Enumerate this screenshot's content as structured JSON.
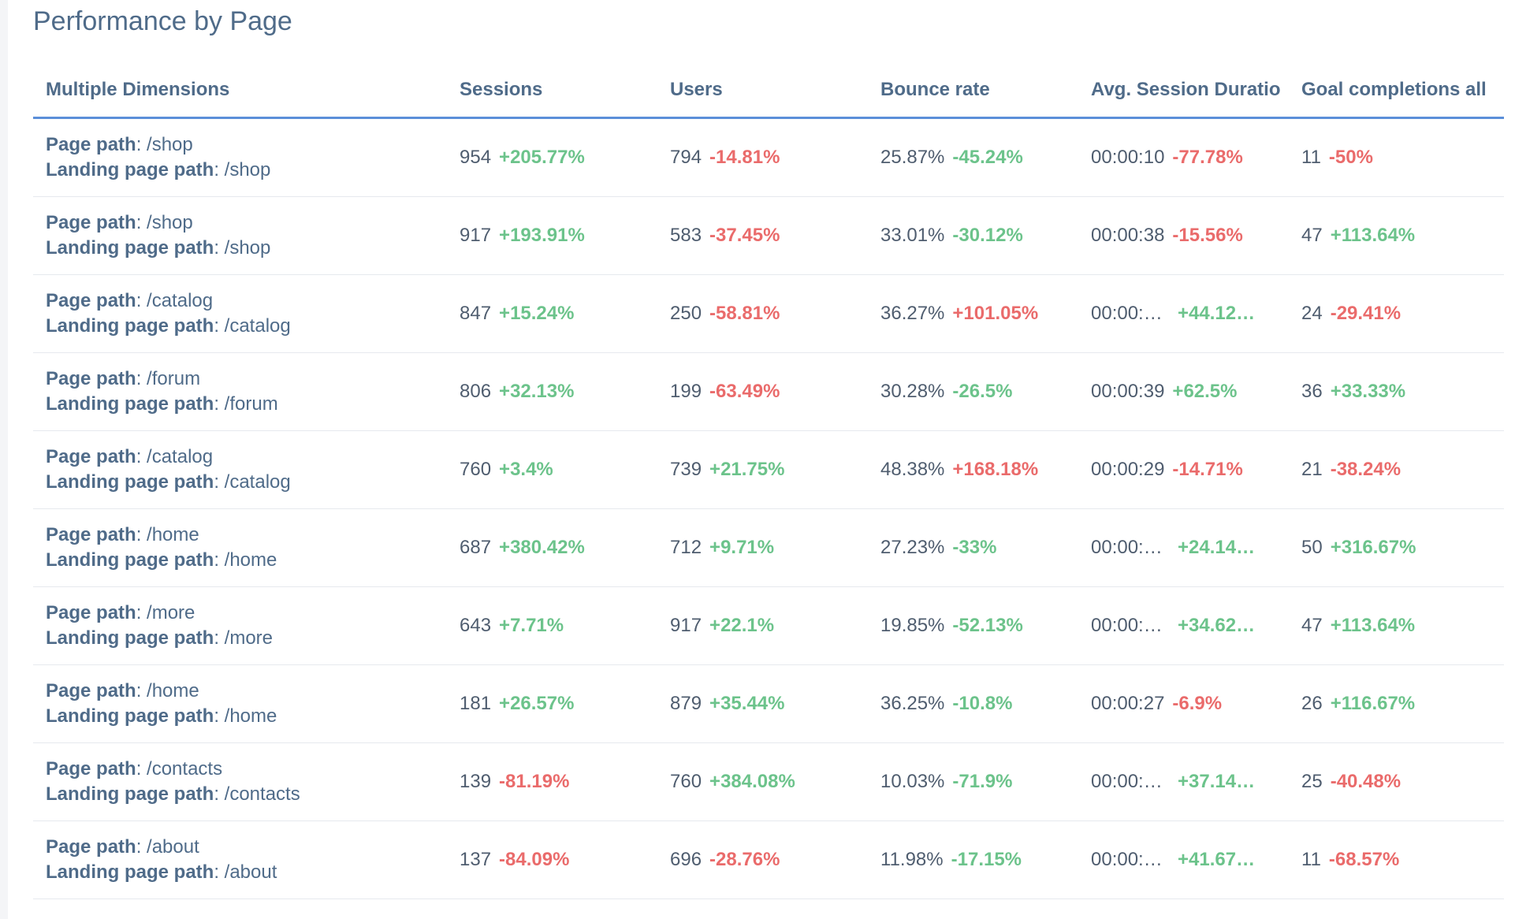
{
  "title": "Performance by Page",
  "colors": {
    "positive": "#6cc38b",
    "negative": "#ea6b6b",
    "header_underline": "#5b8fd9",
    "text": "#4f6b89"
  },
  "columns": [
    "Multiple Dimensions",
    "Sessions",
    "Users",
    "Bounce rate",
    "Avg. Session Duratio",
    "Goal completions all"
  ],
  "dimension_labels": {
    "page_path": "Page path",
    "landing_page_path": "Landing page path"
  },
  "rows": [
    {
      "page_path": ": /shop",
      "landing_page_path": ": /shop",
      "sessions": "954",
      "sessions_delta": "+205.77%",
      "users": "794",
      "users_delta": "-14.81%",
      "bounce": "25.87%",
      "bounce_delta": "-45.24%",
      "duration": "00:00:10",
      "duration_delta": "-77.78%",
      "goals": "11",
      "goals_delta": "-50%"
    },
    {
      "page_path": ": /shop",
      "landing_page_path": ": /shop",
      "sessions": "917",
      "sessions_delta": "+193.91%",
      "users": "583",
      "users_delta": "-37.45%",
      "bounce": "33.01%",
      "bounce_delta": "-30.12%",
      "duration": "00:00:38",
      "duration_delta": "-15.56%",
      "goals": "47",
      "goals_delta": "+113.64%"
    },
    {
      "page_path": ": /catalog",
      "landing_page_path": ": /catalog",
      "sessions": "847",
      "sessions_delta": "+15.24%",
      "users": "250",
      "users_delta": "-58.81%",
      "bounce": "36.27%",
      "bounce_delta": "+101.05%",
      "duration": "00:00:…",
      "duration_delta": "+44.12…",
      "goals": "24",
      "goals_delta": "-29.41%"
    },
    {
      "page_path": ": /forum",
      "landing_page_path": ": /forum",
      "sessions": "806",
      "sessions_delta": "+32.13%",
      "users": "199",
      "users_delta": "-63.49%",
      "bounce": "30.28%",
      "bounce_delta": "-26.5%",
      "duration": "00:00:39",
      "duration_delta": "+62.5%",
      "goals": "36",
      "goals_delta": "+33.33%"
    },
    {
      "page_path": ": /catalog",
      "landing_page_path": ": /catalog",
      "sessions": "760",
      "sessions_delta": "+3.4%",
      "users": "739",
      "users_delta": "+21.75%",
      "bounce": "48.38%",
      "bounce_delta": "+168.18%",
      "duration": "00:00:29",
      "duration_delta": "-14.71%",
      "goals": "21",
      "goals_delta": "-38.24%"
    },
    {
      "page_path": ": /home",
      "landing_page_path": ": /home",
      "sessions": "687",
      "sessions_delta": "+380.42%",
      "users": "712",
      "users_delta": "+9.71%",
      "bounce": "27.23%",
      "bounce_delta": "-33%",
      "duration": "00:00:…",
      "duration_delta": "+24.14…",
      "goals": "50",
      "goals_delta": "+316.67%"
    },
    {
      "page_path": ": /more",
      "landing_page_path": ": /more",
      "sessions": "643",
      "sessions_delta": "+7.71%",
      "users": "917",
      "users_delta": "+22.1%",
      "bounce": "19.85%",
      "bounce_delta": "-52.13%",
      "duration": "00:00:…",
      "duration_delta": "+34.62…",
      "goals": "47",
      "goals_delta": "+113.64%"
    },
    {
      "page_path": ": /home",
      "landing_page_path": ": /home",
      "sessions": "181",
      "sessions_delta": "+26.57%",
      "users": "879",
      "users_delta": "+35.44%",
      "bounce": "36.25%",
      "bounce_delta": "-10.8%",
      "duration": "00:00:27",
      "duration_delta": "-6.9%",
      "goals": "26",
      "goals_delta": "+116.67%"
    },
    {
      "page_path": ": /contacts",
      "landing_page_path": ": /contacts",
      "sessions": "139",
      "sessions_delta": "-81.19%",
      "users": "760",
      "users_delta": "+384.08%",
      "bounce": "10.03%",
      "bounce_delta": "-71.9%",
      "duration": "00:00:…",
      "duration_delta": "+37.14…",
      "goals": "25",
      "goals_delta": "-40.48%"
    },
    {
      "page_path": ": /about",
      "landing_page_path": ": /about",
      "sessions": "137",
      "sessions_delta": "-84.09%",
      "users": "696",
      "users_delta": "-28.76%",
      "bounce": "11.98%",
      "bounce_delta": "-17.15%",
      "duration": "00:00:…",
      "duration_delta": "+41.67…",
      "goals": "11",
      "goals_delta": "-68.57%"
    }
  ],
  "delta_signs": {
    "sessions_delta": [
      "pos",
      "pos",
      "pos",
      "pos",
      "pos",
      "pos",
      "pos",
      "pos",
      "neg",
      "neg"
    ],
    "users_delta": [
      "neg",
      "neg",
      "neg",
      "neg",
      "pos",
      "pos",
      "pos",
      "pos",
      "pos",
      "neg"
    ],
    "bounce_delta": [
      "pos",
      "pos",
      "neg",
      "pos",
      "neg",
      "pos",
      "pos",
      "pos",
      "pos",
      "pos"
    ],
    "duration_delta": [
      "neg",
      "neg",
      "pos",
      "pos",
      "neg",
      "pos",
      "pos",
      "neg",
      "pos",
      "pos"
    ],
    "goals_delta": [
      "neg",
      "pos",
      "neg",
      "pos",
      "neg",
      "pos",
      "pos",
      "pos",
      "neg",
      "neg"
    ]
  }
}
